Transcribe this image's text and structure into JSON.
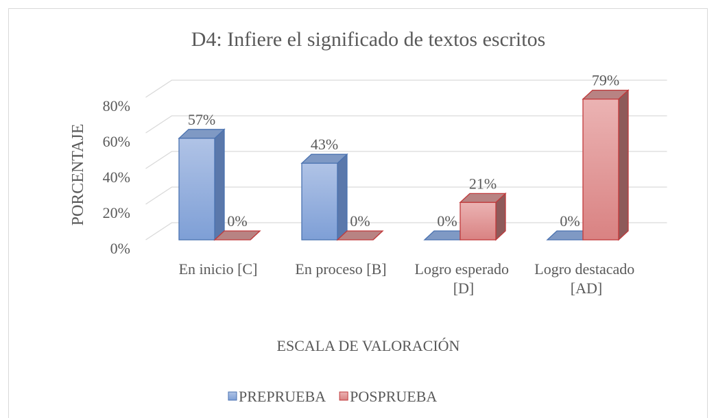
{
  "chart_data": {
    "type": "bar3d",
    "title": "D4: Infiere el significado de textos escritos",
    "categories": [
      "En inicio [C]",
      "En proceso [B]",
      "Logro esperado [D]",
      "Logro destacado [AD]"
    ],
    "series": [
      {
        "name": "PREPRUEBA",
        "color": "#8faad9",
        "values": [
          57,
          43,
          0,
          0
        ],
        "value_labels": [
          "57%",
          "43%",
          "0%",
          "0%"
        ]
      },
      {
        "name": "POSPRUEBA",
        "color": "#e09a9a",
        "values": [
          0,
          0,
          21,
          79
        ],
        "value_labels": [
          "0%",
          "0%",
          "21%",
          "79%"
        ]
      }
    ],
    "ylim": [
      0,
      80
    ],
    "yticks": [
      {
        "value": 0,
        "label": "0%"
      },
      {
        "value": 20,
        "label": "20%"
      },
      {
        "value": 40,
        "label": "40%"
      },
      {
        "value": 60,
        "label": "60%"
      },
      {
        "value": 80,
        "label": "80%"
      }
    ],
    "xlabel": "ESCALA DE VALORACIÓN",
    "ylabel": "PORCENTAJE",
    "grid": true,
    "legend": "bottom"
  }
}
